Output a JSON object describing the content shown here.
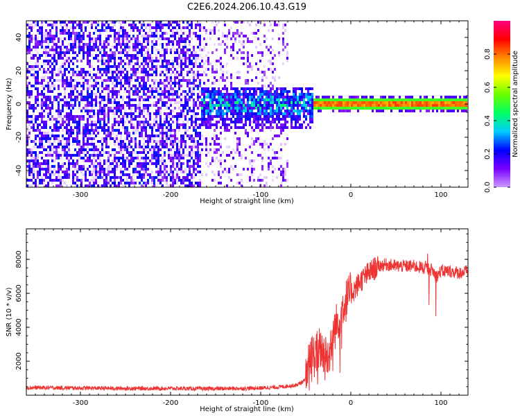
{
  "title": "C2E6.2024.206.10.43.G19",
  "chart_data": [
    {
      "type": "heatmap",
      "xlabel": "Height of straight line (km)",
      "ylabel": "Frequency (Hz)",
      "xlim": [
        -360,
        130
      ],
      "ylim": [
        -50,
        50
      ],
      "x_ticks": [
        -300,
        -200,
        -100,
        0,
        100
      ],
      "y_ticks": [
        -40,
        -20,
        0,
        20,
        40
      ],
      "colorbar": {
        "label": "Normalized spectral amplitude",
        "range": [
          0,
          1
        ],
        "ticks": [
          "0.0",
          "0.2",
          "0.4",
          "0.6",
          "0.8"
        ],
        "colors": [
          "#cc99ff",
          "#7700ff",
          "#0000ff",
          "#00ccff",
          "#00ff66",
          "#66ff00",
          "#ffff00",
          "#ff8800",
          "#ff0000",
          "#ff0080"
        ]
      },
      "features": [
        {
          "name": "broadband noise",
          "x_range": [
            -360,
            -165
          ],
          "freq_range": [
            -50,
            50
          ],
          "amplitude_range": [
            0.0,
            0.25
          ]
        },
        {
          "name": "sparse noise",
          "x_range": [
            -165,
            -68
          ],
          "freq_range": [
            -50,
            50
          ],
          "amplitude_range": [
            0.0,
            0.15
          ]
        },
        {
          "name": "signal onset",
          "x_range": [
            -165,
            -40
          ],
          "freq_range": [
            -15,
            10
          ],
          "amplitude_range": [
            0.1,
            0.5
          ]
        },
        {
          "name": "carrier line",
          "x_range": [
            -40,
            130
          ],
          "freq": 0,
          "amplitude_range": [
            0.4,
            1.0
          ]
        }
      ],
      "grid": false,
      "legend": "colorbar-right"
    },
    {
      "type": "line",
      "xlabel": "Height of straight line (km)",
      "ylabel": "SNR (10 * v/v)",
      "xlim": [
        -360,
        130
      ],
      "ylim": [
        0,
        9800
      ],
      "x_ticks": [
        -300,
        -200,
        -100,
        0,
        100
      ],
      "y_ticks": [
        2000,
        4000,
        6000,
        8000
      ],
      "series": [
        {
          "color": "#ee3333",
          "x": [
            -360,
            -300,
            -250,
            -200,
            -160,
            -120,
            -100,
            -80,
            -60,
            -50,
            -45,
            -40,
            -35,
            -30,
            -25,
            -20,
            -15,
            -10,
            -5,
            0,
            5,
            10,
            20,
            30,
            40,
            50,
            60,
            70,
            80,
            90,
            95,
            100,
            110,
            120,
            130
          ],
          "y": [
            450,
            420,
            400,
            400,
            380,
            400,
            420,
            480,
            600,
            900,
            2500,
            2300,
            2800,
            2500,
            2200,
            3600,
            4300,
            5100,
            5600,
            6000,
            6300,
            6700,
            7200,
            7600,
            7700,
            7600,
            7600,
            7600,
            7500,
            7400,
            7000,
            7300,
            7300,
            7200,
            7300
          ]
        }
      ],
      "grid": false
    }
  ]
}
